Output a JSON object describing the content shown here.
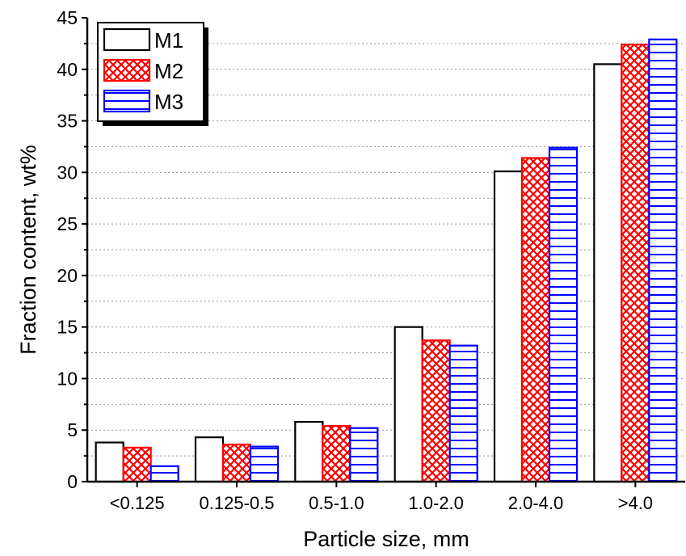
{
  "chart_data": {
    "type": "bar",
    "xlabel": "Particle size, mm",
    "ylabel": "Fraction content, wt%",
    "ylim": [
      0,
      45
    ],
    "yticks": [
      0,
      5,
      10,
      15,
      20,
      25,
      30,
      35,
      40,
      45
    ],
    "grid": true,
    "legend_position": "top-left",
    "categories": [
      "<0.125",
      "0.125-0.5",
      "0.5-1.0",
      "1.0-2.0",
      "2.0-4.0",
      ">4.0"
    ],
    "series": [
      {
        "name": "M1",
        "values": [
          3.8,
          4.3,
          5.8,
          15.0,
          30.1,
          40.5
        ],
        "color": "#000000",
        "pattern": "none"
      },
      {
        "name": "M2",
        "values": [
          3.3,
          3.6,
          5.4,
          13.7,
          31.4,
          42.4
        ],
        "color": "#ff0000",
        "pattern": "crosshatch"
      },
      {
        "name": "M3",
        "values": [
          1.5,
          3.4,
          5.2,
          13.2,
          32.4,
          42.9
        ],
        "color": "#0000ff",
        "pattern": "horizontal-lines"
      }
    ]
  }
}
